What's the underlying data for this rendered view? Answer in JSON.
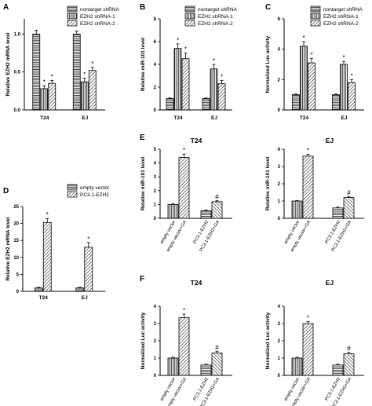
{
  "panels": [
    {
      "id": "A",
      "label": "A",
      "ylabel": "Relative EZH2 mRNA level",
      "ylim": [
        0,
        1.2
      ],
      "ticks": [
        "0.0",
        "0.5",
        "1.0"
      ],
      "tickvals": [
        0,
        0.5,
        1.0
      ],
      "legend": [
        "nontarget shRNA",
        "EZH2 shRNA-1",
        "EZH2 shRNA-2"
      ],
      "categories": [
        "T24",
        "EJ"
      ],
      "values": [
        [
          1.0,
          0.28,
          0.35
        ],
        [
          1.0,
          0.37,
          0.52
        ]
      ],
      "errors": [
        [
          0.05,
          0.04,
          0.04
        ],
        [
          0.04,
          0.05,
          0.04
        ]
      ],
      "sig": [
        [
          "",
          "*",
          "*"
        ],
        [
          "",
          "*",
          "*"
        ]
      ]
    },
    {
      "id": "B",
      "label": "B",
      "ylabel": "Relative miR-101 level",
      "ylim": [
        0,
        8
      ],
      "ticks": [
        "0",
        "2",
        "4",
        "6",
        "8"
      ],
      "tickvals": [
        0,
        2,
        4,
        6,
        8
      ],
      "legend": [
        "nontarget shRNA",
        "EZH2 shRNA-1",
        "EZH2 shRNA-2"
      ],
      "categories": [
        "T24",
        "EJ"
      ],
      "values": [
        [
          1.0,
          5.4,
          4.5
        ],
        [
          1.0,
          3.6,
          2.3
        ]
      ],
      "errors": [
        [
          0.05,
          0.4,
          0.5
        ],
        [
          0.05,
          0.4,
          0.3
        ]
      ],
      "sig": [
        [
          "",
          "*",
          "*"
        ],
        [
          "",
          "*",
          "*"
        ]
      ]
    },
    {
      "id": "C",
      "label": "C",
      "ylabel": "Normalized Luc activity",
      "ylim": [
        0,
        6
      ],
      "ticks": [
        "0",
        "2",
        "4",
        "6"
      ],
      "tickvals": [
        0,
        2,
        4,
        6
      ],
      "legend": [
        "nontarget shRNA",
        "EZH2 shRNA-1",
        "EZH2 shRNA-2"
      ],
      "categories": [
        "T24",
        "EJ"
      ],
      "values": [
        [
          1.0,
          4.2,
          3.1
        ],
        [
          1.0,
          3.0,
          1.8
        ]
      ],
      "errors": [
        [
          0.05,
          0.3,
          0.3
        ],
        [
          0.05,
          0.2,
          0.2
        ]
      ],
      "sig": [
        [
          "",
          "*",
          "*"
        ],
        [
          "",
          "*",
          "*"
        ]
      ]
    },
    {
      "id": "D",
      "label": "D",
      "ylabel": "Relative EZH2 mRNA level",
      "ylim": [
        0,
        25
      ],
      "ticks": [
        "0",
        "5",
        "10",
        "15",
        "20",
        "25"
      ],
      "tickvals": [
        0,
        5,
        10,
        15,
        20,
        25
      ],
      "legend": [
        "empty vector",
        "PC3.1-EZH2"
      ],
      "categories": [
        "T24",
        "EJ"
      ],
      "values": [
        [
          1.0,
          20.3
        ],
        [
          1.0,
          13.0
        ]
      ],
      "errors": [
        [
          0.2,
          1.2
        ],
        [
          0.2,
          1.4
        ]
      ],
      "sig": [
        [
          "",
          "*"
        ],
        [
          "",
          "*"
        ]
      ]
    },
    {
      "id": "E1",
      "label": "E",
      "title": "T24",
      "ylabel": "Relative miR-101 level",
      "ylim": [
        0,
        5
      ],
      "ticks": [
        "0",
        "1",
        "2",
        "3",
        "4",
        "5"
      ],
      "tickvals": [
        0,
        1,
        2,
        3,
        4,
        5
      ],
      "categories": [
        "empty vector",
        "empty vector+GA",
        "PC3.1-EZH2",
        "PC3.1-EZH2+GA"
      ],
      "values": [
        1.0,
        4.4,
        0.55,
        1.2
      ],
      "errors": [
        0.05,
        0.25,
        0.05,
        0.08
      ],
      "sig": [
        "",
        "*",
        "",
        "#"
      ]
    },
    {
      "id": "E2",
      "label": "",
      "title": "EJ",
      "ylabel": "Relative miR-101 level",
      "ylim": [
        0,
        4
      ],
      "ticks": [
        "0",
        "1",
        "2",
        "3",
        "4"
      ],
      "tickvals": [
        0,
        1,
        2,
        3,
        4
      ],
      "categories": [
        "empty vector",
        "empty vector+GA",
        "PC3.1-EZH2",
        "PC3.1-EZH2+GA"
      ],
      "values": [
        1.0,
        3.6,
        0.6,
        1.2
      ],
      "errors": [
        0.03,
        0.1,
        0.05,
        0.07
      ],
      "sig": [
        "",
        "*",
        "",
        "#"
      ]
    },
    {
      "id": "F1",
      "label": "F",
      "title": "T24",
      "ylabel": "Normalized Luc activity",
      "ylim": [
        0,
        4
      ],
      "ticks": [
        "0",
        "1",
        "2",
        "3",
        "4"
      ],
      "tickvals": [
        0,
        1,
        2,
        3,
        4
      ],
      "categories": [
        "empty vector",
        "empty vector+GA",
        "PC3.1-EZH2",
        "PC3.1-EZH2+GA"
      ],
      "values": [
        1.0,
        3.35,
        0.6,
        1.3
      ],
      "errors": [
        0.05,
        0.2,
        0.05,
        0.1
      ],
      "sig": [
        "",
        "*",
        "",
        "#"
      ]
    },
    {
      "id": "F2",
      "label": "",
      "title": "EJ",
      "ylabel": "Normalized Luc activity",
      "ylim": [
        0,
        4
      ],
      "ticks": [
        "0",
        "1",
        "2",
        "3",
        "4"
      ],
      "tickvals": [
        0,
        1,
        2,
        3,
        4
      ],
      "categories": [
        "empty vector",
        "empty vector+GA",
        "PC3.1-EZH2",
        "PC3.1-EZH2+GA"
      ],
      "values": [
        1.0,
        3.0,
        0.6,
        1.25
      ],
      "errors": [
        0.05,
        0.12,
        0.05,
        0.08
      ],
      "sig": [
        "",
        "*",
        "",
        "#"
      ]
    }
  ],
  "chart_data": [
    {
      "type": "bar",
      "title": "",
      "ylabel": "Relative EZH2 mRNA level",
      "categories": [
        "T24",
        "EJ"
      ],
      "ylim": [
        0,
        1.2
      ],
      "series": [
        {
          "name": "nontarget shRNA",
          "values": [
            1.0,
            1.0
          ]
        },
        {
          "name": "EZH2 shRNA-1",
          "values": [
            0.28,
            0.37
          ]
        },
        {
          "name": "EZH2 shRNA-2",
          "values": [
            0.35,
            0.52
          ]
        }
      ],
      "legend": "top-right",
      "grid": false
    },
    {
      "type": "bar",
      "title": "",
      "ylabel": "Relative miR-101 level",
      "categories": [
        "T24",
        "EJ"
      ],
      "ylim": [
        0,
        8
      ],
      "series": [
        {
          "name": "nontarget shRNA",
          "values": [
            1.0,
            1.0
          ]
        },
        {
          "name": "EZH2 shRNA-1",
          "values": [
            5.4,
            3.6
          ]
        },
        {
          "name": "EZH2 shRNA-2",
          "values": [
            4.5,
            2.3
          ]
        }
      ],
      "legend": "top-right",
      "grid": false
    },
    {
      "type": "bar",
      "title": "",
      "ylabel": "Normalized Luc activity",
      "categories": [
        "T24",
        "EJ"
      ],
      "ylim": [
        0,
        6
      ],
      "series": [
        {
          "name": "nontarget shRNA",
          "values": [
            1.0,
            1.0
          ]
        },
        {
          "name": "EZH2 shRNA-1",
          "values": [
            4.2,
            3.0
          ]
        },
        {
          "name": "EZH2 shRNA-2",
          "values": [
            3.1,
            1.8
          ]
        }
      ],
      "legend": "top-right",
      "grid": false
    },
    {
      "type": "bar",
      "title": "",
      "ylabel": "Relative EZH2 mRNA level",
      "categories": [
        "T24",
        "EJ"
      ],
      "ylim": [
        0,
        25
      ],
      "series": [
        {
          "name": "empty vector",
          "values": [
            1.0,
            1.0
          ]
        },
        {
          "name": "PC3.1-EZH2",
          "values": [
            20.3,
            13.0
          ]
        }
      ],
      "legend": "top-right",
      "grid": false
    },
    {
      "type": "bar",
      "title": "T24",
      "ylabel": "Relative miR-101 level",
      "categories": [
        "empty vector",
        "empty vector+GA",
        "PC3.1-EZH2",
        "PC3.1-EZH2+GA"
      ],
      "values": [
        1.0,
        4.4,
        0.55,
        1.2
      ],
      "ylim": [
        0,
        5
      ],
      "grid": false
    },
    {
      "type": "bar",
      "title": "EJ",
      "ylabel": "Relative miR-101 level",
      "categories": [
        "empty vector",
        "empty vector+GA",
        "PC3.1-EZH2",
        "PC3.1-EZH2+GA"
      ],
      "values": [
        1.0,
        3.6,
        0.6,
        1.2
      ],
      "ylim": [
        0,
        4
      ],
      "grid": false
    },
    {
      "type": "bar",
      "title": "T24",
      "ylabel": "Normalized Luc activity",
      "categories": [
        "empty vector",
        "empty vector+GA",
        "PC3.1-EZH2",
        "PC3.1-EZH2+GA"
      ],
      "values": [
        1.0,
        3.35,
        0.6,
        1.3
      ],
      "ylim": [
        0,
        4
      ],
      "grid": false
    },
    {
      "type": "bar",
      "title": "EJ",
      "ylabel": "Normalized Luc activity",
      "categories": [
        "empty vector",
        "empty vector+GA",
        "PC3.1-EZH2",
        "PC3.1-EZH2+GA"
      ],
      "values": [
        1.0,
        3.0,
        0.6,
        1.25
      ],
      "ylim": [
        0,
        4
      ],
      "grid": false
    }
  ]
}
